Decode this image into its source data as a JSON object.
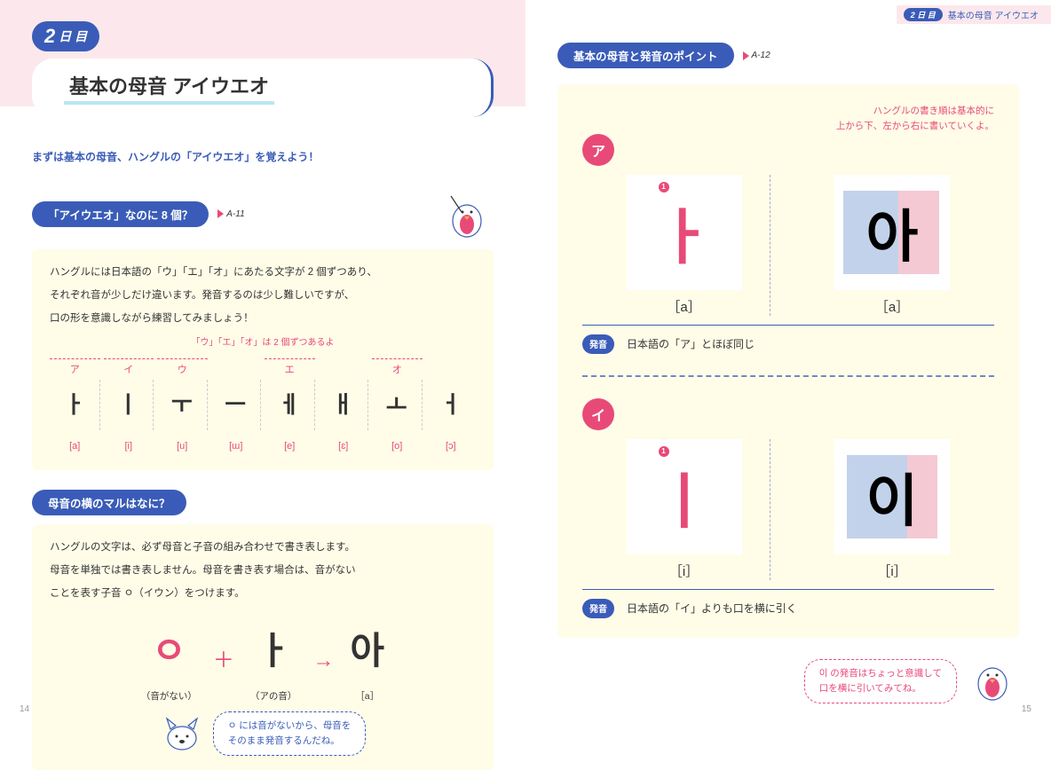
{
  "colors": {
    "blue": "#3a5cb8",
    "pink": "#e84a78",
    "cream": "#fffde8",
    "rose": "#fce8ec"
  },
  "header": {
    "badge": "2 日 目",
    "title": "基本の母音 アイウエオ"
  },
  "left": {
    "dayNum": "2",
    "dayText": "日 目",
    "title": "基本の母音 アイウエオ",
    "lead": "まずは基本の母音、ハングルの「アイウエオ」を覚えよう！",
    "s1": {
      "pill": "「アイウエオ」なのに 8 個？",
      "audio": "A-11",
      "body": [
        "ハングルには日本語の「ウ」「エ」「オ」にあたる文字が 2 個ずつあり、",
        "それぞれ音が少しだけ違います。発音するのは少し難しいですが、",
        "口の形を意識しながら練習してみましょう！"
      ],
      "note": "「ウ」「エ」「オ」は 2 個ずつあるよ",
      "kana": [
        "ア",
        "イ",
        "ウ",
        "",
        "エ",
        "",
        "オ",
        ""
      ],
      "glyph": [
        "ㅏ",
        "ㅣ",
        "ㅜ",
        "ㅡ",
        "ㅔ",
        "ㅐ",
        "ㅗ",
        "ㅓ"
      ],
      "ipa": [
        "[a]",
        "[i]",
        "[u]",
        "[ɯ]",
        "[e]",
        "[ɛ]",
        "[o]",
        "[ɔ]"
      ]
    },
    "s2": {
      "pill": "母音の横のマルはなに？",
      "body": [
        "ハングルの文字は、必ず母音と子音の組み合わせで書き表します。",
        "母音を単独では書き表しません。母音を書き表す場合は、音がない",
        "ことを表す子音 ㅇ（イウン）をつけます。"
      ],
      "combo": {
        "c": "ㅇ",
        "cLabel": "（音がない）",
        "v": "ㅏ",
        "vLabel": "（アの音）",
        "r": "아",
        "rLabel": "［a］"
      },
      "bubble": "ㅇ には音がないから、母音を\nそのまま発音するんだね。"
    },
    "page": "14"
  },
  "right": {
    "run": "基本の母音 アイウエオ",
    "pill": "基本の母音と発音のポイント",
    "audio": "A-12",
    "hint": "ハングルの書き順は基本的に\n上から下、左から右に書いていくよ。",
    "v1": {
      "kana": "ア",
      "glyph": "ㅏ",
      "syll": "아",
      "ipa1": "［a］",
      "ipa2": "［a］",
      "pron": "日本語の「ア」とほぼ同じ"
    },
    "v2": {
      "kana": "イ",
      "glyph": "ㅣ",
      "syll": "이",
      "ipa1": "［i］",
      "ipa2": "［i］",
      "pron": "日本語の「イ」よりも口を横に引く"
    },
    "bubble": "이 の発音はちょっと意識して\n口を横に引いてみてね。",
    "page": "15",
    "pronLabel": "発音"
  }
}
